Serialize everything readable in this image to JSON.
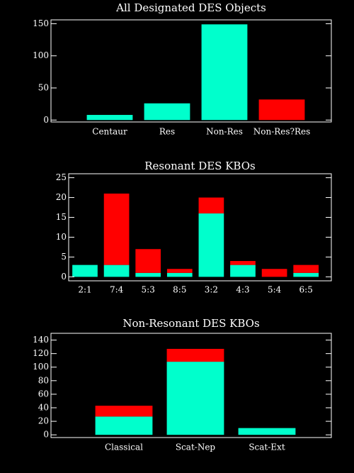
{
  "chart_data": [
    {
      "type": "bar",
      "title": "All Designated DES Objects",
      "categories": [
        "Centaur",
        "Res",
        "Non-Res",
        "Non-Res?Res"
      ],
      "values": [
        8,
        26,
        149,
        32
      ],
      "colors": [
        "#00ffcc",
        "#00ffcc",
        "#00ffcc",
        "#ff0000"
      ],
      "ylim": [
        -3,
        156
      ],
      "yticks": [
        0,
        50,
        100,
        150
      ]
    },
    {
      "type": "stacked_bar",
      "title": "Resonant DES KBOs",
      "categories": [
        "2:1",
        "7:4",
        "5:3",
        "8:5",
        "3:2",
        "4:3",
        "5:4",
        "6:5"
      ],
      "series": [
        {
          "color": "#00ffcc",
          "values": [
            3,
            3,
            1,
            1,
            16,
            3,
            0,
            1
          ]
        },
        {
          "color": "#ff0000",
          "values": [
            0,
            18,
            6,
            1,
            4,
            1,
            2,
            2
          ]
        }
      ],
      "ylim": [
        -1,
        26
      ],
      "yticks": [
        0,
        5,
        10,
        15,
        20,
        25
      ]
    },
    {
      "type": "stacked_bar",
      "title": "Non-Resonant DES KBOs",
      "categories": [
        "Classical",
        "Scat-Nep",
        "Scat-Ext"
      ],
      "series": [
        {
          "color": "#00ffcc",
          "values": [
            27,
            108,
            10
          ]
        },
        {
          "color": "#ff0000",
          "values": [
            16,
            19,
            0
          ]
        }
      ],
      "ylim": [
        -4,
        150
      ],
      "yticks": [
        0,
        20,
        40,
        60,
        80,
        100,
        120,
        140
      ]
    }
  ]
}
